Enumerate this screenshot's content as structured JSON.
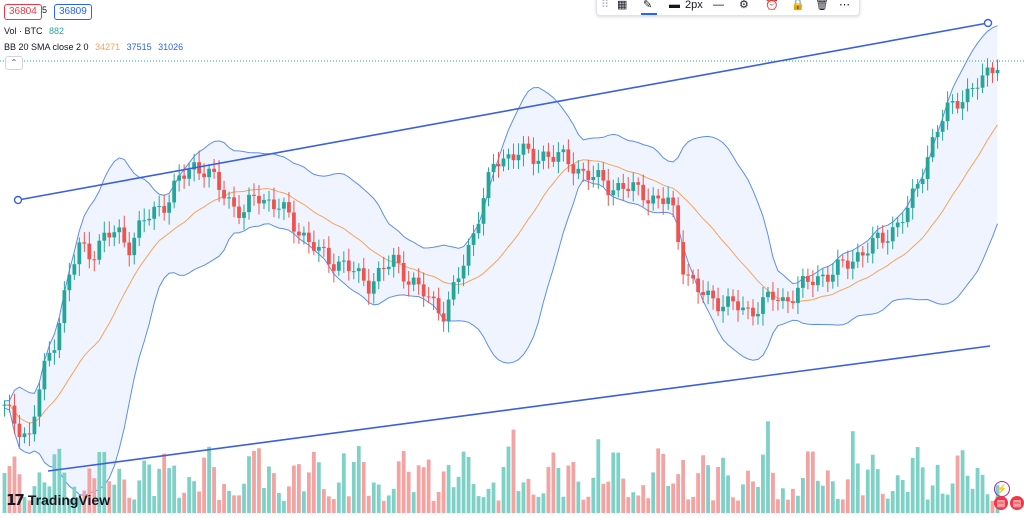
{
  "quotes": {
    "bid": "36804",
    "spread": "5",
    "ask": "36809"
  },
  "volume_legend": {
    "label": "Vol · BTC",
    "value": "882"
  },
  "bb_legend": {
    "label": "BB 20 SMA close 2 0",
    "basis": "34271",
    "upper": "37515",
    "lower": "31026"
  },
  "toolbar": {
    "line_width_label": "2px"
  },
  "branding": {
    "name": "TradingView"
  },
  "colors": {
    "up": "#26a69a",
    "down": "#ef5350",
    "vol_up": "#7fd1c7",
    "vol_down": "#f3a3a1",
    "basis": "#f7a35c",
    "band": "#5b8ef0",
    "band_fill": "#2962ff",
    "trend": "#3a5fe0"
  },
  "chart_data": {
    "type": "candlestick",
    "indicators": [
      "Volume",
      "Bollinger Bands"
    ],
    "trend_channel": {
      "upper_line": "visible",
      "lower_line": "visible"
    },
    "approximate_closes": [
      0.16,
      0.12,
      0.08,
      0.25,
      0.35,
      0.5,
      0.6,
      0.58,
      0.62,
      0.64,
      0.6,
      0.66,
      0.7,
      0.72,
      0.78,
      0.82,
      0.8,
      0.76,
      0.72,
      0.68,
      0.74,
      0.72,
      0.7,
      0.66,
      0.62,
      0.58,
      0.56,
      0.55,
      0.52,
      0.5,
      0.53,
      0.56,
      0.52,
      0.48,
      0.45,
      0.42,
      0.5,
      0.6,
      0.72,
      0.82,
      0.84,
      0.86,
      0.83,
      0.85,
      0.84,
      0.82,
      0.8,
      0.78,
      0.76,
      0.76,
      0.75,
      0.74,
      0.72,
      0.72,
      0.55,
      0.48,
      0.46,
      0.45,
      0.44,
      0.42,
      0.44,
      0.46,
      0.45,
      0.48,
      0.5,
      0.52,
      0.53,
      0.55,
      0.58,
      0.6,
      0.62,
      0.66,
      0.7,
      0.8,
      0.9,
      0.96,
      1.0,
      1.02,
      1.05,
      1.1
    ]
  }
}
